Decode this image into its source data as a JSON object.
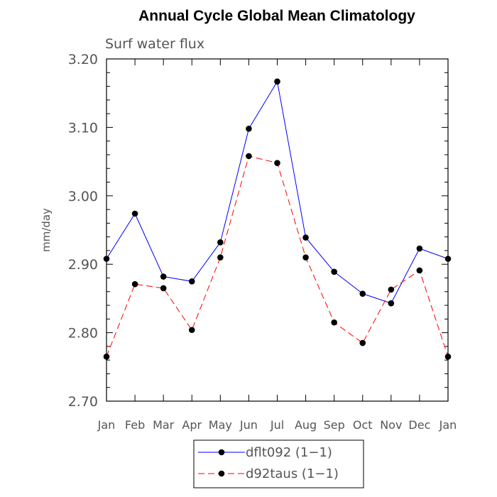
{
  "chart_data": {
    "type": "line",
    "title": "Annual Cycle Global Mean Climatology",
    "subtitle": "Surf water flux",
    "ylabel": "mm/day",
    "xlabel": "",
    "categories": [
      "Jan",
      "Feb",
      "Mar",
      "Apr",
      "May",
      "Jun",
      "Jul",
      "Aug",
      "Sep",
      "Oct",
      "Nov",
      "Dec",
      "Jan"
    ],
    "ylim": [
      2.7,
      3.2
    ],
    "yticks": [
      "2.70",
      "2.80",
      "2.90",
      "3.00",
      "3.10",
      "3.20"
    ],
    "grid": false,
    "legend_position": "bottom-center",
    "series": [
      {
        "name": "dflt092 (1−1)",
        "color": "#0000ff",
        "style": "solid",
        "marker": "filled-circle",
        "values": [
          2.908,
          2.974,
          2.882,
          2.875,
          2.932,
          3.098,
          3.167,
          2.939,
          2.889,
          2.857,
          2.843,
          2.923,
          2.908
        ]
      },
      {
        "name": "d92taus (1−1)",
        "color": "#ff0000",
        "style": "dashed",
        "marker": "filled-circle",
        "values": [
          2.765,
          2.871,
          2.865,
          2.804,
          2.91,
          3.058,
          3.048,
          2.91,
          2.815,
          2.785,
          2.863,
          2.891,
          2.765
        ]
      }
    ]
  }
}
